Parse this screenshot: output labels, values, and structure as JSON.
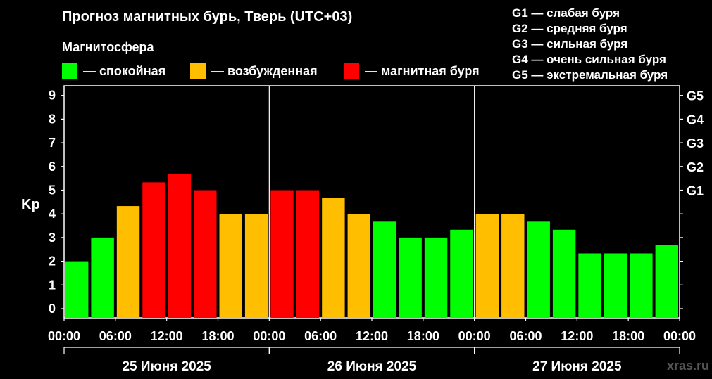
{
  "header": {
    "title": "Прогноз магнитных бурь, Тверь (UTC+03)",
    "subtitle": "Магнитосфера"
  },
  "legend": [
    {
      "label": "— спокойная",
      "color": "#00ff00"
    },
    {
      "label": "— возбужденная",
      "color": "#ffbf00"
    },
    {
      "label": "— магнитная буря",
      "color": "#ff0000"
    }
  ],
  "storm_scale": [
    "G1 — слабая буря",
    "G2 — средняя буря",
    "G3 — сильная буря",
    "G4 — очень сильная буря",
    "G5 — экстремальная буря"
  ],
  "watermark": "xras.ru",
  "chart_data": {
    "type": "bar",
    "ylabel": "Kp",
    "ylim": [
      0,
      9
    ],
    "yticks": [
      "0",
      "1",
      "2",
      "3",
      "4",
      "5",
      "6",
      "7",
      "8",
      "9"
    ],
    "right_ticks": [
      {
        "kp": 5,
        "label": "G1"
      },
      {
        "kp": 6,
        "label": "G2"
      },
      {
        "kp": 7,
        "label": "G3"
      },
      {
        "kp": 8,
        "label": "G4"
      },
      {
        "kp": 9,
        "label": "G5"
      }
    ],
    "xticks": [
      "00:00",
      "06:00",
      "12:00",
      "18:00",
      "00:00",
      "06:00",
      "12:00",
      "18:00",
      "00:00",
      "06:00",
      "12:00",
      "18:00",
      "00:00"
    ],
    "days": [
      "25 Июня 2025",
      "26 Июня 2025",
      "27 Июня 2025"
    ],
    "colors": {
      "quiet": "#00ff00",
      "active": "#ffbf00",
      "storm": "#ff0000"
    },
    "values": [
      2.0,
      3.0,
      4.33,
      5.33,
      5.67,
      5.0,
      4.0,
      4.0,
      5.0,
      5.0,
      4.67,
      4.0,
      3.67,
      3.0,
      3.0,
      3.33,
      4.0,
      4.0,
      3.67,
      3.33,
      2.33,
      2.33,
      2.33,
      2.67
    ],
    "levels": [
      "quiet",
      "quiet",
      "active",
      "storm",
      "storm",
      "storm",
      "active",
      "active",
      "storm",
      "storm",
      "active",
      "active",
      "quiet",
      "quiet",
      "quiet",
      "quiet",
      "active",
      "active",
      "quiet",
      "quiet",
      "quiet",
      "quiet",
      "quiet",
      "quiet"
    ]
  }
}
